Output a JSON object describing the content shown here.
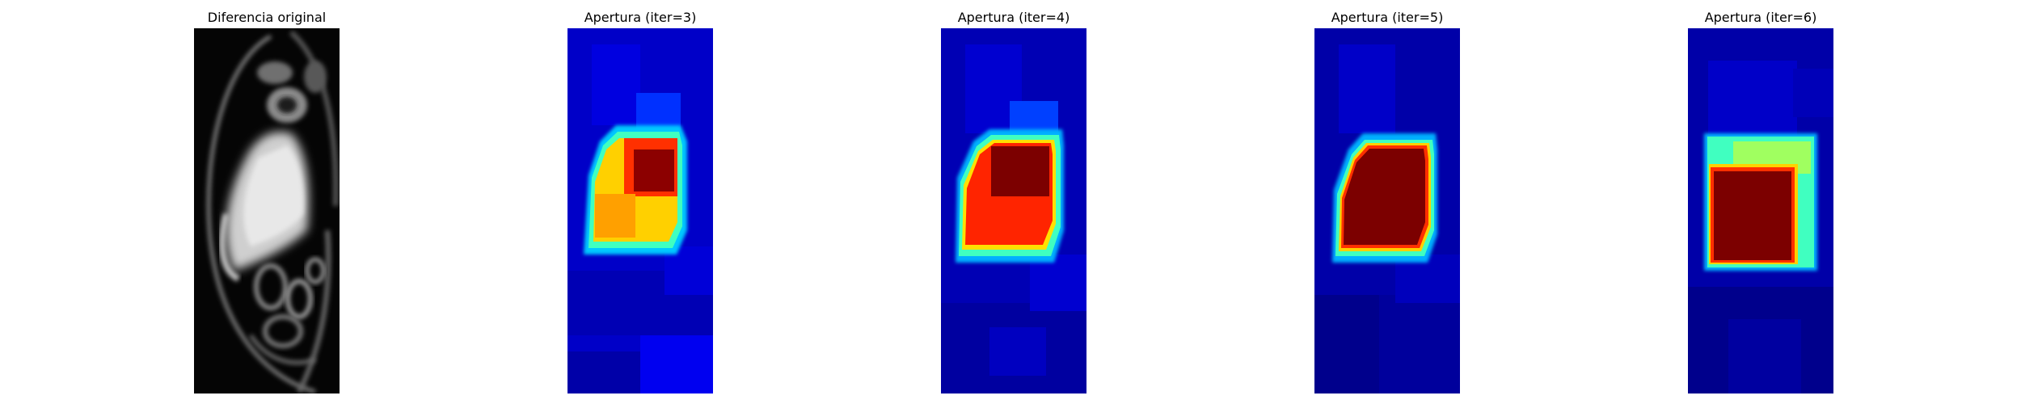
{
  "figure": {
    "panels": [
      {
        "title": "Diferencia original",
        "colormap": "gray"
      },
      {
        "title": "Apertura (iter=3)",
        "colormap": "jet"
      },
      {
        "title": "Apertura (iter=4)",
        "colormap": "jet"
      },
      {
        "title": "Apertura (iter=5)",
        "colormap": "jet"
      },
      {
        "title": "Apertura (iter=6)",
        "colormap": "jet"
      }
    ]
  },
  "colors": {
    "background": "#ffffff",
    "jet_dark_blue": "#00008f",
    "jet_blue": "#0000ff",
    "jet_mid_blue": "#0040ff",
    "jet_cyan": "#00ffff",
    "jet_green": "#80ff80",
    "jet_yellow": "#ffd000",
    "jet_orange": "#ff8000",
    "jet_red": "#ff2000",
    "jet_dark_red": "#800000"
  }
}
